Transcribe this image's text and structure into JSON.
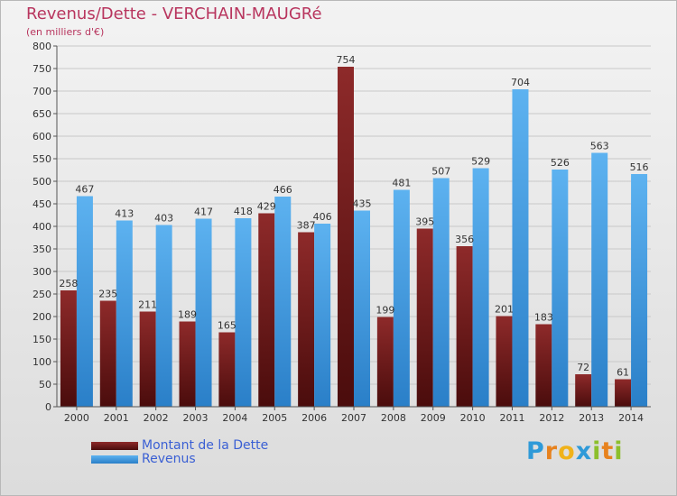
{
  "header": {
    "title": "Revenus/Dette - VERCHAIN-MAUGRé",
    "subtitle": "(en milliers d'€)"
  },
  "logo": {
    "letters": [
      "P",
      "r",
      "o",
      "x",
      "i",
      "t",
      "i"
    ],
    "colors": [
      "#2f9ad8",
      "#e7821e",
      "#f0b21a",
      "#2f9ad8",
      "#8cbf2c",
      "#e7821e",
      "#8cbf2c"
    ]
  },
  "chart_data": {
    "type": "bar",
    "title": "Revenus/Dette - VERCHAIN-MAUGRé",
    "ylabel": "(en milliers d'€)",
    "ylim": [
      0,
      800
    ],
    "ytick_step": 50,
    "categories": [
      "2000",
      "2001",
      "2002",
      "2003",
      "2004",
      "2005",
      "2006",
      "2007",
      "2008",
      "2009",
      "2010",
      "2011",
      "2012",
      "2013",
      "2014"
    ],
    "series": [
      {
        "name": "Montant de la Dette",
        "color": "#7a1c1c",
        "values": [
          258,
          235,
          211,
          189,
          165,
          429,
          387,
          754,
          199,
          395,
          356,
          201,
          183,
          72,
          61
        ]
      },
      {
        "name": "Revenus",
        "color": "#3d97e0",
        "values": [
          467,
          413,
          403,
          417,
          418,
          466,
          406,
          435,
          481,
          507,
          529,
          704,
          526,
          563,
          516
        ]
      }
    ],
    "legend": "bottom-left"
  }
}
